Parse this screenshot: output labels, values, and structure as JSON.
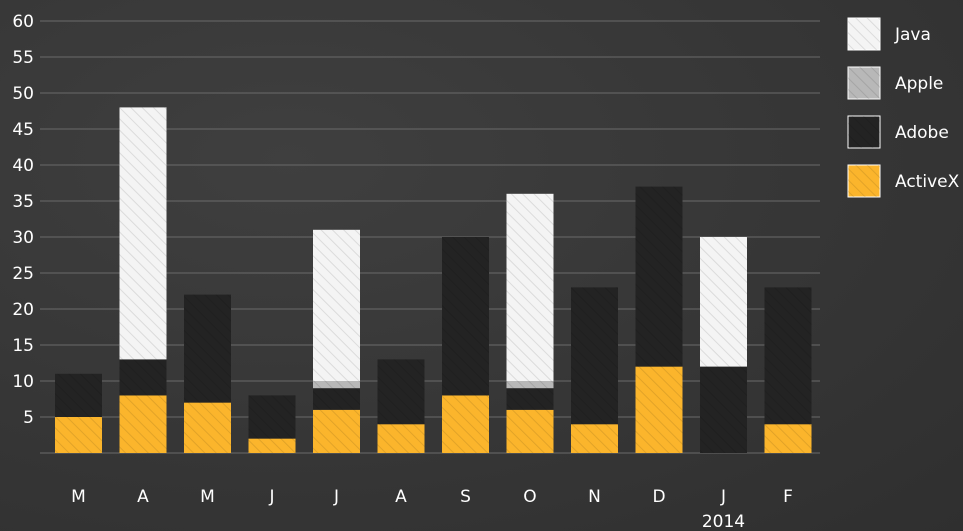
{
  "chart_data": {
    "type": "bar",
    "stacked": true,
    "categories": [
      "M",
      "A",
      "M",
      "J",
      "J",
      "A",
      "S",
      "O",
      "N",
      "D",
      "J",
      "F"
    ],
    "year_label": "2014",
    "year_label_under_category_index": 10,
    "y_ticks": [
      "5",
      "10",
      "15",
      "20",
      "25",
      "30",
      "35",
      "40",
      "45",
      "50",
      "55",
      "60"
    ],
    "ylim": [
      0,
      60
    ],
    "grid": true,
    "legend_position": "top-right",
    "series": [
      {
        "name": "ActiveX",
        "color": "#fbb52c",
        "values": [
          5,
          8,
          7,
          2,
          6,
          4,
          8,
          6,
          4,
          12,
          0,
          4
        ]
      },
      {
        "name": "Adobe",
        "color": "#232323",
        "values": [
          6,
          5,
          15,
          6,
          3,
          9,
          22,
          3,
          19,
          25,
          12,
          19
        ]
      },
      {
        "name": "Apple",
        "color": "#b8b8b8",
        "values": [
          0,
          0,
          0,
          0,
          1,
          0,
          0,
          1,
          0,
          0,
          0,
          0
        ]
      },
      {
        "name": "Java",
        "color": "#f4f4f4",
        "values": [
          0,
          35,
          0,
          0,
          21,
          0,
          0,
          26,
          0,
          0,
          18,
          0
        ]
      }
    ],
    "legend_order": [
      "Java",
      "Apple",
      "Adobe",
      "ActiveX"
    ]
  }
}
